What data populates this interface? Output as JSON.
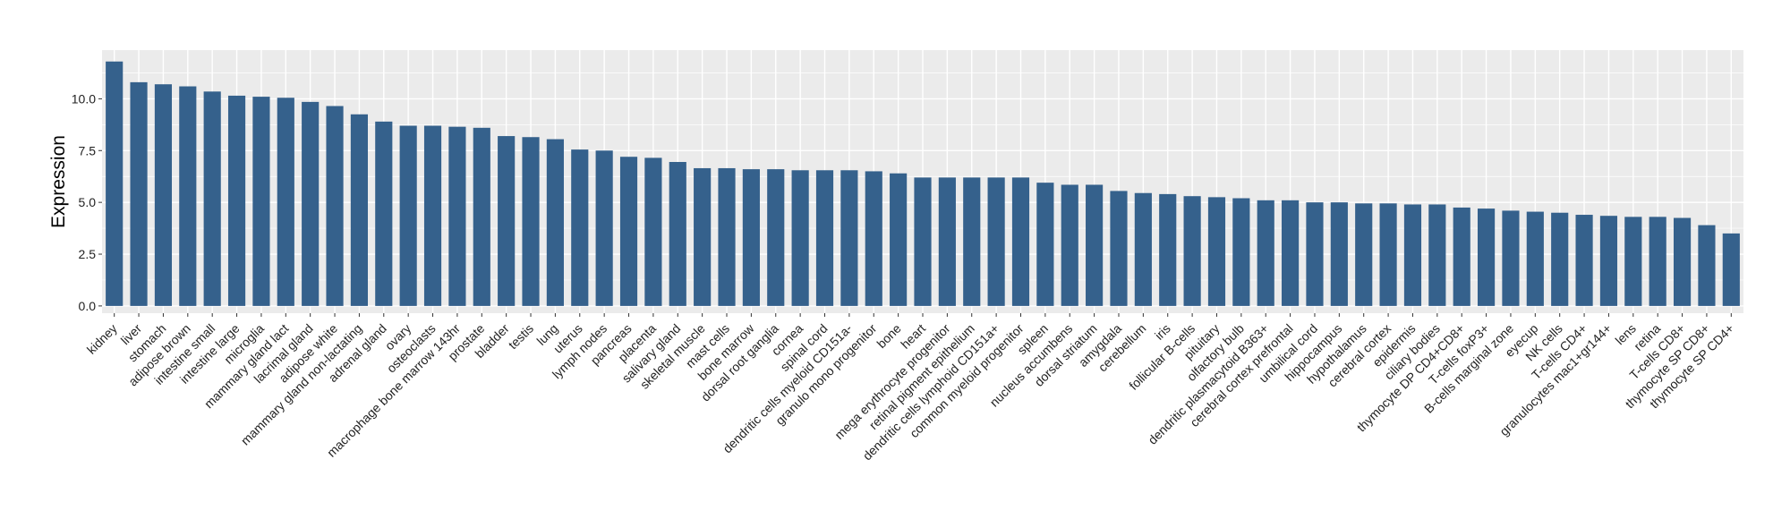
{
  "chart_data": {
    "type": "bar",
    "title": "",
    "xlabel": "",
    "ylabel": "Expression",
    "ylim": [
      -0.35,
      12.35
    ],
    "yticks": [
      0.0,
      2.5,
      5.0,
      7.5,
      10.0
    ],
    "ytick_labels": [
      "0.0",
      "2.5",
      "5.0",
      "7.5",
      "10.0"
    ],
    "grid": true,
    "legend": "none",
    "bar_color": "#35618c",
    "panel_color": "#ebebeb",
    "grid_color": "#ffffff",
    "categories": [
      "kidney",
      "liver",
      "stomach",
      "adipose brown",
      "intestine small",
      "intestine large",
      "microglia",
      "mammary gland  lact",
      "lacrimal gland",
      "adipose white",
      "mammary gland non-lactating",
      "adrenal gland",
      "ovary",
      "osteoclasts",
      "macrophage bone marrow 143hr",
      "prostate",
      "bladder",
      "testis",
      "lung",
      "uterus",
      "lymph nodes",
      "pancreas",
      "placenta",
      "salivary gland",
      "skeletal muscle",
      "mast cells",
      "bone marrow",
      "dorsal root ganglia",
      "cornea",
      "spinal cord",
      "dendritic cells myeloid CD151a-",
      "granulo mono progenitor",
      "bone",
      "heart",
      "mega erythrocyte progenitor",
      "retinal pigment epithelium",
      "dendritic cells lymphoid CD151a+",
      "common myeloid progenitor",
      "spleen",
      "nucleus accumbens",
      "dorsal striatum",
      "amygdala",
      "cerebellum",
      "iris",
      "follicular B-cells",
      "pituitary",
      "olfactory bulb",
      "dendritic plasmacytoid B363+",
      "cerebral cortex prefrontal",
      "umbilical cord",
      "hippocampus",
      "hypothalamus",
      "cerebral cortex",
      "epidermis",
      "ciliary bodies",
      "thymocyte DP CD4+CD8+",
      "T-cells foxP3+",
      "B-cells marginal zone",
      "eyecup",
      "NK cells",
      "T-cells CD4+",
      "granulocytes mac1+gr144+",
      "lens",
      "retina",
      "T-cells CD8+",
      "thymocyte SP CD8+",
      "thymocyte SP CD4+"
    ],
    "values": [
      11.8,
      10.8,
      10.7,
      10.6,
      10.35,
      10.15,
      10.1,
      10.05,
      9.85,
      9.65,
      9.25,
      8.9,
      8.7,
      8.7,
      8.65,
      8.6,
      8.2,
      8.15,
      8.05,
      7.55,
      7.5,
      7.2,
      7.15,
      6.95,
      6.65,
      6.65,
      6.6,
      6.6,
      6.55,
      6.55,
      6.55,
      6.5,
      6.4,
      6.2,
      6.2,
      6.2,
      6.2,
      6.2,
      5.95,
      5.85,
      5.85,
      5.55,
      5.45,
      5.4,
      5.3,
      5.25,
      5.2,
      5.1,
      5.1,
      5.0,
      5.0,
      4.95,
      4.95,
      4.9,
      4.9,
      4.75,
      4.7,
      4.6,
      4.55,
      4.5,
      4.4,
      4.35,
      4.3,
      4.3,
      4.25,
      3.9,
      3.5
    ]
  }
}
